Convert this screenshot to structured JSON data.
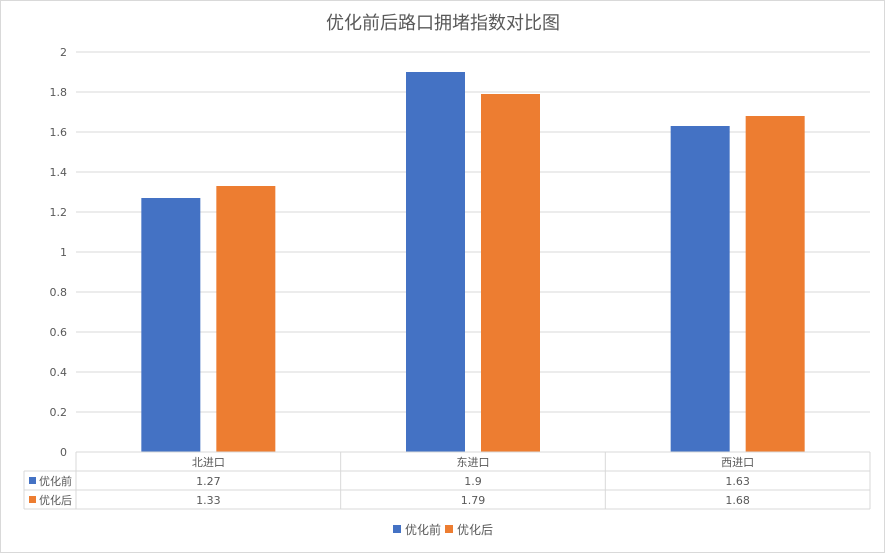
{
  "chart_data": {
    "type": "bar",
    "title": "优化前后路口拥堵指数对比图",
    "categories": [
      "北进口",
      "东进口",
      "西进口"
    ],
    "series": [
      {
        "name": "优化前",
        "color": "#4472C4",
        "values": [
          1.27,
          1.9,
          1.63
        ],
        "value_labels": [
          "1.27",
          "1.9",
          "1.63"
        ]
      },
      {
        "name": "优化后",
        "color": "#ED7D31",
        "values": [
          1.33,
          1.79,
          1.68
        ],
        "value_labels": [
          "1.33",
          "1.79",
          "1.68"
        ]
      }
    ],
    "ylim": [
      0,
      2
    ],
    "yticks": [
      0,
      0.2,
      0.4,
      0.6,
      0.8,
      1,
      1.2,
      1.4,
      1.6,
      1.8,
      2
    ],
    "ytick_labels": [
      "0",
      "0.2",
      "0.4",
      "0.6",
      "0.8",
      "1",
      "1.2",
      "1.4",
      "1.6",
      "1.8",
      "2"
    ],
    "grid": true,
    "legend_position": "bottom",
    "data_table": true
  }
}
